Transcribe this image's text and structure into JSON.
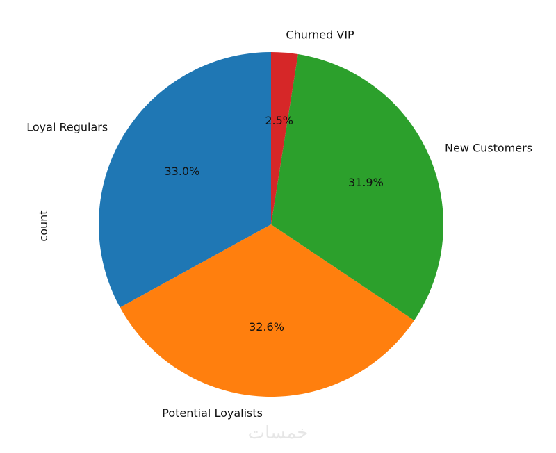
{
  "chart_data": {
    "type": "pie",
    "title": "",
    "ylabel": "count",
    "labels": [
      "Loyal Regulars",
      "Potential Loyalists",
      "New Customers",
      "Churned VIP"
    ],
    "values": [
      33.0,
      32.6,
      31.9,
      2.5
    ],
    "percent_labels": [
      "33.0%",
      "32.6%",
      "31.9%",
      "2.5%"
    ],
    "colors": [
      "#1f77b4",
      "#ff7f0e",
      "#2ca02c",
      "#d62728"
    ],
    "start_angle": 90,
    "direction": "counterclockwise",
    "legend": "none"
  },
  "watermark": {
    "text": "خمسات"
  }
}
